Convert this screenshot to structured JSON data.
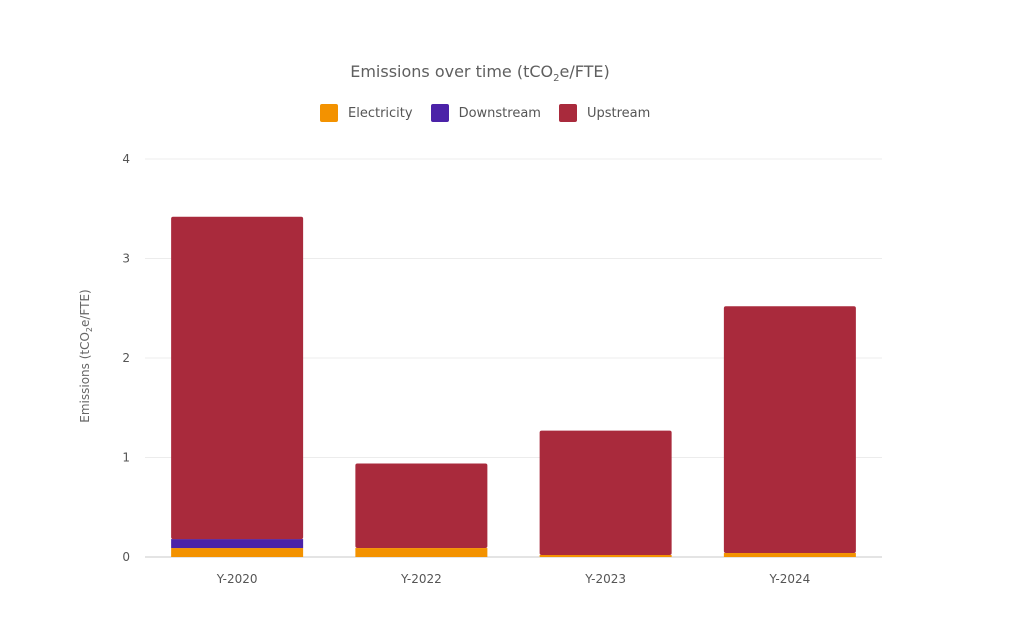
{
  "chart_data": {
    "type": "bar",
    "stacked": true,
    "title": {
      "prefix": "Emissions over time (tCO",
      "subscript": "2",
      "suffix": "e/FTE)"
    },
    "ylabel": {
      "prefix": "Emissions (tCO",
      "subscript": "2",
      "suffix": "e/FTE)"
    },
    "xlabel": "",
    "categories": [
      "Y-2020",
      "Y-2022",
      "Y-2023",
      "Y-2024"
    ],
    "series": [
      {
        "name": "Electricity",
        "color": "#f39200",
        "values": [
          0.09,
          0.09,
          0.02,
          0.04
        ]
      },
      {
        "name": "Downstream",
        "color": "#4b22a8",
        "values": [
          0.09,
          0,
          0,
          0
        ]
      },
      {
        "name": "Upstream",
        "color": "#a92a3c",
        "values": [
          3.24,
          0.85,
          1.25,
          2.48
        ]
      }
    ],
    "ylim": [
      0,
      4
    ],
    "yticks": [
      "0",
      "1",
      "2",
      "3",
      "4"
    ],
    "grid": true,
    "legend_position": "top-center"
  }
}
